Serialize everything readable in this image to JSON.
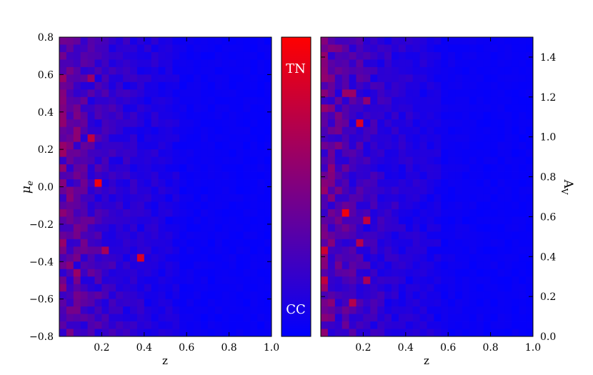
{
  "chart_data": [
    {
      "type": "heatmap",
      "panel": "left",
      "xlabel": "z",
      "ylabel": "μ",
      "ylabel_subscript": "e",
      "xlim": [
        0.0,
        1.0
      ],
      "ylim": [
        -0.8,
        0.8
      ],
      "x_ticks": [
        {
          "value": 0.2,
          "label": "0.2"
        },
        {
          "value": 0.4,
          "label": "0.4"
        },
        {
          "value": 0.6,
          "label": "0.6"
        },
        {
          "value": 0.8,
          "label": "0.8"
        },
        {
          "value": 1.0,
          "label": "1.0"
        }
      ],
      "y_ticks": [
        {
          "value": -0.8,
          "label": "−0.8"
        },
        {
          "value": -0.6,
          "label": "−0.6"
        },
        {
          "value": -0.4,
          "label": "−0.4"
        },
        {
          "value": -0.2,
          "label": "−0.2"
        },
        {
          "value": 0.0,
          "label": "0.0"
        },
        {
          "value": 0.2,
          "label": "0.2"
        },
        {
          "value": 0.4,
          "label": "0.4"
        },
        {
          "value": 0.6,
          "label": "0.6"
        },
        {
          "value": 0.8,
          "label": "0.8"
        }
      ],
      "grid_cols": 30,
      "grid_rows": 40,
      "cells_description": "fraction TN (0 = CC blue, 1 = TN red)",
      "hotspots": [
        {
          "x": 0.18,
          "y": 0.03,
          "value": 0.95
        },
        {
          "x": 0.38,
          "y": -0.38,
          "value": 0.85
        },
        {
          "x": 0.15,
          "y": 0.25,
          "value": 0.75
        },
        {
          "x": 0.08,
          "y": -0.45,
          "value": 0.6
        },
        {
          "x": 0.16,
          "y": 0.58,
          "value": 0.6
        },
        {
          "x": 0.22,
          "y": -0.33,
          "value": 0.65
        },
        {
          "x": 0.07,
          "y": 0.28,
          "value": 0.55
        }
      ]
    },
    {
      "type": "colorbar",
      "top_label": "TN",
      "bottom_label": "CC",
      "colors": [
        "#0000ff",
        "#ff0000"
      ]
    },
    {
      "type": "heatmap",
      "panel": "right",
      "xlabel": "z",
      "ylabel": "A",
      "ylabel_subscript": "V",
      "xlim": [
        0.0,
        1.0
      ],
      "ylim": [
        0.0,
        1.5
      ],
      "x_ticks": [
        {
          "value": 0.2,
          "label": "0.2"
        },
        {
          "value": 0.4,
          "label": "0.4"
        },
        {
          "value": 0.6,
          "label": "0.6"
        },
        {
          "value": 0.8,
          "label": "0.8"
        },
        {
          "value": 1.0,
          "label": "1.0"
        }
      ],
      "y_ticks": [
        {
          "value": 0.0,
          "label": "0.0"
        },
        {
          "value": 0.2,
          "label": "0.2"
        },
        {
          "value": 0.4,
          "label": "0.4"
        },
        {
          "value": 0.6,
          "label": "0.6"
        },
        {
          "value": 0.8,
          "label": "0.8"
        },
        {
          "value": 1.0,
          "label": "1.0"
        },
        {
          "value": 1.2,
          "label": "1.2"
        },
        {
          "value": 1.4,
          "label": "1.4"
        }
      ],
      "grid_cols": 30,
      "grid_rows": 40,
      "cells_description": "fraction TN (0 = CC blue, 1 = TN red)",
      "hotspots": [
        {
          "x": 0.12,
          "y": 0.63,
          "value": 0.95
        },
        {
          "x": 0.18,
          "y": 1.08,
          "value": 0.85
        },
        {
          "x": 0.02,
          "y": 0.42,
          "value": 0.8
        },
        {
          "x": 0.02,
          "y": 0.28,
          "value": 0.75
        },
        {
          "x": 0.22,
          "y": 0.58,
          "value": 0.75
        },
        {
          "x": 0.18,
          "y": 0.48,
          "value": 0.7
        },
        {
          "x": 0.15,
          "y": 0.18,
          "value": 0.7
        },
        {
          "x": 0.22,
          "y": 0.28,
          "value": 0.65
        },
        {
          "x": 0.13,
          "y": 1.22,
          "value": 0.6
        },
        {
          "x": 0.22,
          "y": 1.18,
          "value": 0.55
        }
      ]
    }
  ]
}
